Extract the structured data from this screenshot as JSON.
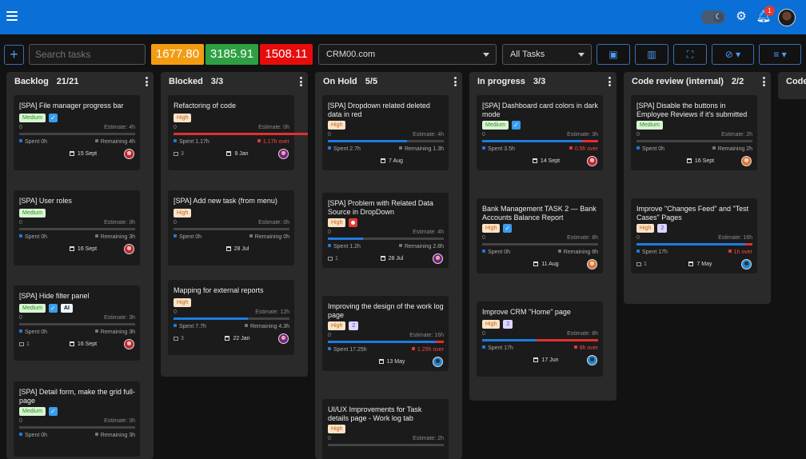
{
  "header": {
    "notification_count": "1",
    "theme_icon": "moon-icon",
    "settings_icon": "gear-icon",
    "bell_icon": "bell-icon"
  },
  "toolbar": {
    "search_placeholder": "Search tasks",
    "stats": [
      {
        "value": "1677.80",
        "color": "#f39c12"
      },
      {
        "value": "3185.91",
        "color": "#2ea043"
      },
      {
        "value": "1508.11",
        "color": "#e60c0c"
      }
    ],
    "project": "CRM00.com",
    "filter": "All Tasks"
  },
  "columns": [
    {
      "title": "Backlog",
      "count": "21/21",
      "cards": [
        {
          "title": "[SPA] File manager progress bar",
          "tags": [
            {
              "t": "tag",
              "v": "Medium",
              "c": "medium"
            },
            {
              "t": "check"
            }
          ],
          "est_l": "0",
          "est_r": "Estimate: 4h",
          "progress": 0,
          "over": 0,
          "spent": "Spent 0h",
          "remain": "Remaining 4h",
          "over_text": "",
          "comments": "",
          "date": "15 Sept",
          "av": "av-a"
        },
        {
          "title": "[SPA] User roles",
          "tags": [
            {
              "t": "tag",
              "v": "Medium",
              "c": "medium"
            }
          ],
          "est_l": "0",
          "est_r": "Estimate: 3h",
          "progress": 0,
          "over": 0,
          "spent": "Spent 0h",
          "remain": "Remaining 3h",
          "over_text": "",
          "comments": "",
          "date": "16 Sept",
          "av": "av-a"
        },
        {
          "title": "[SPA] Hide filter panel",
          "tags": [
            {
              "t": "tag",
              "v": "Medium",
              "c": "medium"
            },
            {
              "t": "check"
            },
            {
              "t": "tag",
              "v": "AI",
              "c": "ai"
            }
          ],
          "est_l": "0",
          "est_r": "Estimate: 3h",
          "progress": 0,
          "over": 0,
          "spent": "Spent 0h",
          "remain": "Remaining 3h",
          "over_text": "",
          "comments": "1",
          "date": "16 Sept",
          "av": "av-a"
        },
        {
          "title": "[SPA] Detail form, make the grid full-page",
          "tags": [
            {
              "t": "tag",
              "v": "Medium",
              "c": "medium"
            },
            {
              "t": "check"
            }
          ],
          "est_l": "0",
          "est_r": "Estimate: 3h",
          "progress": 0,
          "over": 0,
          "spent": "Spent 0h",
          "remain": "Remaining 3h",
          "over_text": "",
          "comments": "",
          "date": "",
          "av": ""
        }
      ]
    },
    {
      "title": "Blocked",
      "count": "3/3",
      "cards": [
        {
          "title": "Refactoring of code",
          "tags": [
            {
              "t": "tag",
              "v": "High",
              "c": "high"
            }
          ],
          "est_l": "0",
          "est_r": "Estimate: 0h",
          "progress": 1,
          "over": 1,
          "spent": "Spent 1.17h",
          "remain": "",
          "over_text": "1.17h over",
          "comments": "3",
          "date": "9 Jan",
          "av": "av-b"
        },
        {
          "title": "[SPA] Add new task (from menu)",
          "tags": [
            {
              "t": "tag",
              "v": "High",
              "c": "high"
            }
          ],
          "est_l": "0",
          "est_r": "Estimate: 0h",
          "progress": 0,
          "over": 0,
          "spent": "Spent 0h",
          "remain": "Remaining 0h",
          "over_text": "",
          "comments": "",
          "date": "28 Jul",
          "av": ""
        },
        {
          "title": "Mapping for external reports",
          "tags": [
            {
              "t": "tag",
              "v": "High",
              "c": "high"
            }
          ],
          "est_l": "0",
          "est_r": "Estimate: 12h",
          "progress": 0.64,
          "over": 0,
          "spent": "Spent 7.7h",
          "remain": "Remaining 4.3h",
          "over_text": "",
          "comments": "3",
          "date": "22 Jan",
          "av": "av-b"
        }
      ]
    },
    {
      "title": "On Hold",
      "count": "5/5",
      "cards": [
        {
          "title": "[SPA] Dropdown related deleted data in red",
          "tags": [
            {
              "t": "tag",
              "v": "High",
              "c": "high"
            }
          ],
          "est_l": "0",
          "est_r": "Estimate: 4h",
          "progress": 0.68,
          "over": 0,
          "spent": "Spent 2.7h",
          "remain": "Remaining 1.3h",
          "over_text": "",
          "comments": "",
          "date": "7 Aug",
          "av": ""
        },
        {
          "title": "[SPA] Problem with Related Data Source in DropDown",
          "tags": [
            {
              "t": "tag",
              "v": "High",
              "c": "high"
            },
            {
              "t": "red"
            }
          ],
          "est_l": "0",
          "est_r": "Estimate: 4h",
          "progress": 0.3,
          "over": 0,
          "spent": "Spent 1.2h",
          "remain": "Remaining 2.8h",
          "over_text": "",
          "comments": "1",
          "date": "28 Jul",
          "av": "av-b"
        },
        {
          "title": "Improving the design of the work log page",
          "tags": [
            {
              "t": "tag",
              "v": "High",
              "c": "high"
            },
            {
              "t": "tag",
              "v": "2",
              "c": "num"
            }
          ],
          "est_l": "0",
          "est_r": "Estimate: 16h",
          "progress": 0.93,
          "over": 0.07,
          "spent": "Spent 17.25h",
          "remain": "",
          "over_text": "1.25h over",
          "comments": "",
          "date": "13 May",
          "av": "av-d"
        },
        {
          "title": "UI/UX Improvements for Task details page - Work log tab",
          "tags": [
            {
              "t": "tag",
              "v": "High",
              "c": "high"
            }
          ],
          "est_l": "0",
          "est_r": "Estimate: 2h",
          "progress": 0,
          "over": 0,
          "spent": "",
          "remain": "",
          "over_text": "",
          "comments": "",
          "date": "",
          "av": ""
        }
      ]
    },
    {
      "title": "In progress",
      "count": "3/3",
      "cards": [
        {
          "title": "[SPA] Dashboard card colors in dark mode",
          "tags": [
            {
              "t": "tag",
              "v": "Medium",
              "c": "medium"
            },
            {
              "t": "check"
            }
          ],
          "est_l": "0",
          "est_r": "Estimate: 3h",
          "progress": 0.86,
          "over": 0.14,
          "spent": "Spent 3.5h",
          "remain": "",
          "over_text": "0.5h over",
          "comments": "",
          "date": "14 Sept",
          "av": "av-a"
        },
        {
          "title": "Bank Management TASK 2 — Bank Accounts Balance Report",
          "tags": [
            {
              "t": "tag",
              "v": "High",
              "c": "high"
            },
            {
              "t": "check"
            }
          ],
          "est_l": "0",
          "est_r": "Estimate: 8h",
          "progress": 0,
          "over": 0,
          "spent": "Spent 0h",
          "remain": "Remaining 8h",
          "over_text": "",
          "comments": "",
          "date": "11 Aug",
          "av": "av-c"
        },
        {
          "title": "Improve CRM \"Home\" page",
          "tags": [
            {
              "t": "tag",
              "v": "High",
              "c": "high"
            },
            {
              "t": "tag",
              "v": "2",
              "c": "num"
            }
          ],
          "est_l": "0",
          "est_r": "Estimate: 8h",
          "progress": 0.47,
          "over": 0.53,
          "spent": "Spent 17h",
          "remain": "",
          "over_text": "9h over",
          "comments": "",
          "date": "17 Jun",
          "av": "av-d"
        }
      ]
    },
    {
      "title": "Code review (internal)",
      "count": "2/2",
      "cards": [
        {
          "title": "[SPA] Disable the buttons in Employee Reviews if it's submitted",
          "tags": [
            {
              "t": "tag",
              "v": "Medium",
              "c": "medium"
            }
          ],
          "est_l": "0",
          "est_r": "Estimate: 2h",
          "progress": 0,
          "over": 0,
          "spent": "Spent 0h",
          "remain": "Remaining 2h",
          "over_text": "",
          "comments": "",
          "date": "16 Sept",
          "av": "av-c"
        },
        {
          "title": "Improve \"Changes Feed\" and \"Test Cases\" Pages",
          "tags": [
            {
              "t": "tag",
              "v": "High",
              "c": "high"
            },
            {
              "t": "tag",
              "v": "2",
              "c": "num"
            }
          ],
          "est_l": "0",
          "est_r": "Estimate: 16h",
          "progress": 0.94,
          "over": 0.06,
          "spent": "Spent 17h",
          "remain": "",
          "over_text": "1h over",
          "comments": "1",
          "date": "7 May",
          "av": "av-d"
        }
      ]
    },
    {
      "title": "Code",
      "count": "",
      "cards": []
    }
  ]
}
